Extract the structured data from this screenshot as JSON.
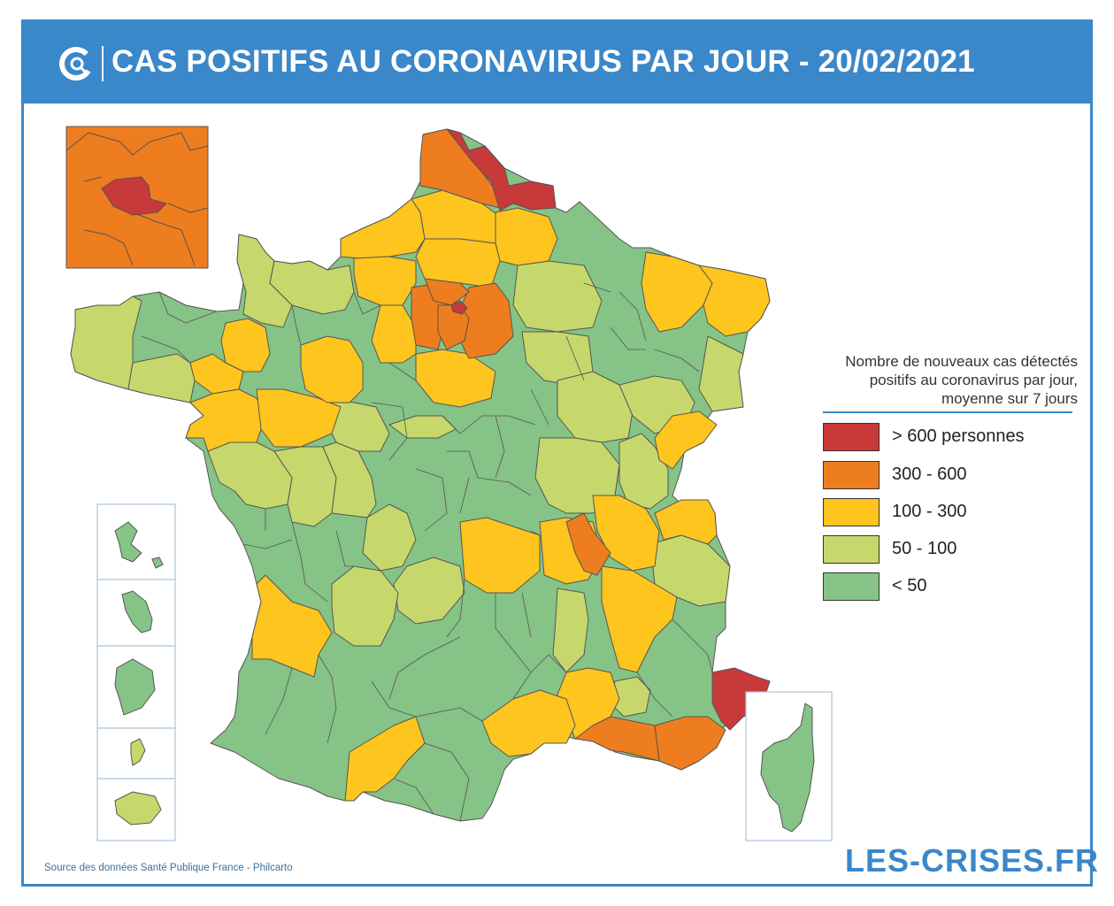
{
  "header": {
    "title": "CAS POSITIFS AU CORONAVIRUS PAR JOUR - 20/02/2021"
  },
  "legend": {
    "title": "Nombre de nouveaux cas détectés positifs au coronavirus par jour, moyenne sur 7 jours",
    "items": [
      {
        "label": "> 600 personnes",
        "color": "#c8393a"
      },
      {
        "label": "300 - 600",
        "color": "#ee7d1f"
      },
      {
        "label": "100 - 300",
        "color": "#fdc51d"
      },
      {
        "label": "50 - 100",
        "color": "#c6d86c"
      },
      {
        "label": "< 50",
        "color": "#86c386"
      }
    ]
  },
  "footer": {
    "source": "Source des données Santé Publique France - Philcarto",
    "brand": "LES-CRISES.FR"
  },
  "colors": {
    "header_bg": "#3a87c9",
    "gt600": "#c8393a",
    "c300_600": "#ee7d1f",
    "c100_300": "#fdc51d",
    "c50_100": "#c6d86c",
    "lt50": "#86c386"
  }
}
